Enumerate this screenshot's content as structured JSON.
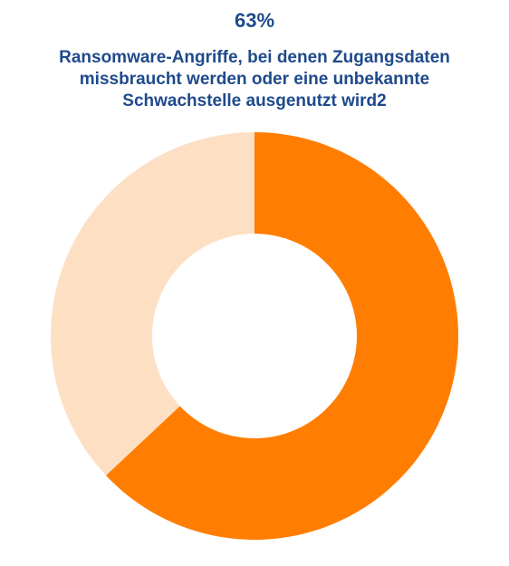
{
  "header": {
    "value": "63%",
    "caption_lines": [
      "Ransomware-Angriffe, bei denen Zugangsdaten",
      "missbraucht werden oder eine unbekannte",
      "Schwachstelle ausgenutzt wird2"
    ]
  },
  "colors": {
    "text": "#1f4a8c",
    "primary": "#ff7d00",
    "secondary": "#fde0c4"
  },
  "chart_data": {
    "type": "pie",
    "style": "donut",
    "title": "63%",
    "subtitle": "Ransomware-Angriffe, bei denen Zugangsdaten missbraucht werden oder eine unbekannte Schwachstelle ausgenutzt wird2",
    "values": [
      63,
      37
    ],
    "colors": [
      "#ff7d00",
      "#fde0c4"
    ],
    "start_angle_deg": 0,
    "direction": "clockwise",
    "legend": "none",
    "data_labels": "none"
  }
}
